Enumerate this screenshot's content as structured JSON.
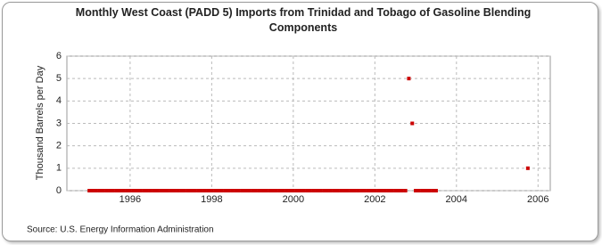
{
  "chart_data": {
    "type": "scatter",
    "title": "Monthly West Coast (PADD 5) Imports from Trinidad and Tobago of Gasoline Blending Components",
    "y_label": "Thousand Barrels per Day",
    "source": "Source: U.S. Energy Information Administration",
    "color": "#cc0000",
    "grid": true,
    "xlim": [
      1994.45,
      2006.3
    ],
    "xticks": [
      1996,
      1998,
      2000,
      2002,
      2004,
      2006
    ],
    "ylim": [
      0,
      6
    ],
    "yticks": [
      0,
      1,
      2,
      3,
      4,
      5,
      6
    ],
    "x": [
      "1995-01",
      "1995-02",
      "1995-03",
      "1995-04",
      "1995-05",
      "1995-06",
      "1995-07",
      "1995-08",
      "1995-09",
      "1995-10",
      "1995-11",
      "1995-12",
      "1996-01",
      "1996-02",
      "1996-03",
      "1996-04",
      "1996-05",
      "1996-06",
      "1996-07",
      "1996-08",
      "1996-09",
      "1996-10",
      "1996-11",
      "1996-12",
      "1997-01",
      "1997-02",
      "1997-03",
      "1997-04",
      "1997-05",
      "1997-06",
      "1997-07",
      "1997-08",
      "1997-09",
      "1997-10",
      "1997-11",
      "1997-12",
      "1998-01",
      "1998-02",
      "1998-03",
      "1998-04",
      "1998-05",
      "1998-06",
      "1998-07",
      "1998-08",
      "1998-09",
      "1998-10",
      "1998-11",
      "1998-12",
      "1999-01",
      "1999-02",
      "1999-03",
      "1999-04",
      "1999-05",
      "1999-06",
      "1999-07",
      "1999-08",
      "1999-09",
      "1999-10",
      "1999-11",
      "1999-12",
      "2000-01",
      "2000-02",
      "2000-03",
      "2000-04",
      "2000-05",
      "2000-06",
      "2000-07",
      "2000-08",
      "2000-09",
      "2000-10",
      "2000-11",
      "2000-12",
      "2001-01",
      "2001-02",
      "2001-03",
      "2001-04",
      "2001-05",
      "2001-06",
      "2001-07",
      "2001-08",
      "2001-09",
      "2001-10",
      "2001-11",
      "2001-12",
      "2002-01",
      "2002-02",
      "2002-03",
      "2002-04",
      "2002-05",
      "2002-06",
      "2002-07",
      "2002-08",
      "2002-09",
      "2002-10",
      "2002-11",
      "2002-12",
      "2003-01",
      "2003-02",
      "2003-03",
      "2003-04",
      "2003-05",
      "2003-06",
      "2003-07",
      "2005-10"
    ],
    "values": [
      0,
      0,
      0,
      0,
      0,
      0,
      0,
      0,
      0,
      0,
      0,
      0,
      0,
      0,
      0,
      0,
      0,
      0,
      0,
      0,
      0,
      0,
      0,
      0,
      0,
      0,
      0,
      0,
      0,
      0,
      0,
      0,
      0,
      0,
      0,
      0,
      0,
      0,
      0,
      0,
      0,
      0,
      0,
      0,
      0,
      0,
      0,
      0,
      0,
      0,
      0,
      0,
      0,
      0,
      0,
      0,
      0,
      0,
      0,
      0,
      0,
      0,
      0,
      0,
      0,
      0,
      0,
      0,
      0,
      0,
      0,
      0,
      0,
      0,
      0,
      0,
      0,
      0,
      0,
      0,
      0,
      0,
      0,
      0,
      0,
      0,
      0,
      0,
      0,
      0,
      0,
      0,
      0,
      0,
      5,
      3,
      0,
      0,
      0,
      0,
      0,
      0,
      0,
      1
    ]
  }
}
